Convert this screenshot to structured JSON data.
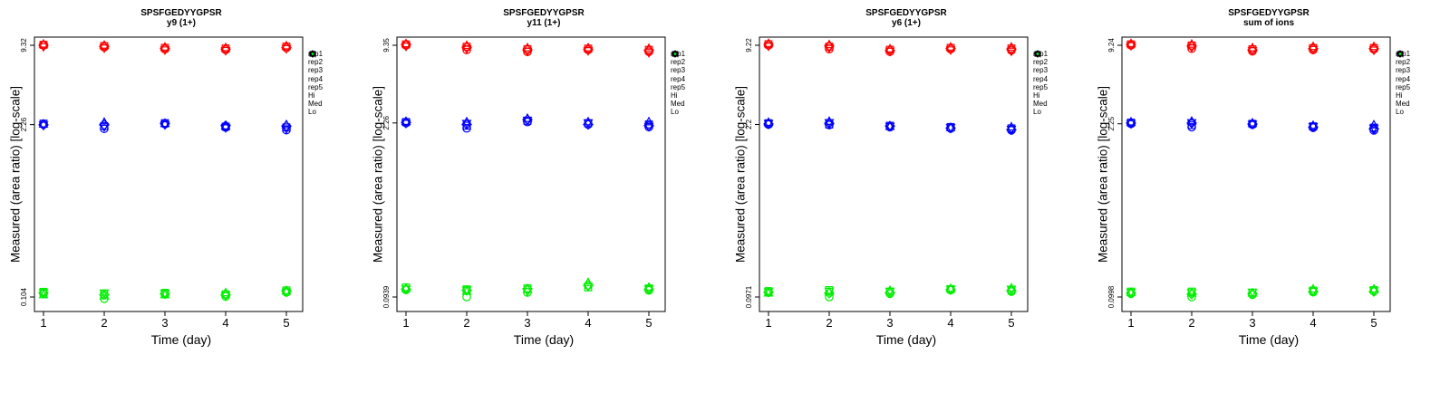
{
  "chart_data": [
    {
      "type": "scatter",
      "title": "SPSFGEDYYGPSR",
      "subtitle": "y9 (1+)",
      "xlabel": "Time (day)",
      "ylabel": "Measured (area ratio) [log-scale]",
      "log_y": true,
      "x_ticks": [
        1,
        2,
        3,
        4,
        5
      ],
      "y_ticks": [
        "0.104",
        "2.26",
        "9.32"
      ],
      "legend": [
        "rep1",
        "rep2",
        "rep3",
        "rep4",
        "rep5",
        "Hi",
        "Med",
        "Lo"
      ],
      "legend_position": "right",
      "series": [
        {
          "name": "Hi",
          "color": "#ff0000",
          "reps": [
            [
              9.32,
              9.0,
              8.7,
              8.6,
              8.9
            ],
            [
              9.4,
              9.2,
              8.9,
              8.8,
              9.1
            ],
            [
              9.5,
              9.3,
              9.0,
              8.9,
              9.2
            ],
            [
              9.3,
              9.1,
              8.8,
              8.7,
              8.95
            ],
            [
              9.1,
              8.9,
              8.6,
              8.5,
              8.8
            ]
          ]
        },
        {
          "name": "Med",
          "color": "#0000ff",
          "reps": [
            [
              2.26,
              2.1,
              2.28,
              2.15,
              2.05
            ],
            [
              2.3,
              2.2,
              2.32,
              2.18,
              2.15
            ],
            [
              2.28,
              2.35,
              2.3,
              2.2,
              2.25
            ],
            [
              2.25,
              2.25,
              2.3,
              2.22,
              2.2
            ],
            [
              2.24,
              2.18,
              2.26,
              2.14,
              2.1
            ]
          ]
        },
        {
          "name": "Lo",
          "color": "#00ee00",
          "reps": [
            [
              0.11,
              0.101,
              0.109,
              0.105,
              0.113
            ],
            [
              0.114,
              0.11,
              0.112,
              0.109,
              0.117
            ],
            [
              0.108,
              0.106,
              0.108,
              0.112,
              0.115
            ],
            [
              0.112,
              0.108,
              0.11,
              0.108,
              0.116
            ],
            [
              0.113,
              0.112,
              0.111,
              0.107,
              0.114
            ]
          ]
        }
      ]
    },
    {
      "type": "scatter",
      "title": "SPSFGEDYYGPSR",
      "subtitle": "y11 (1+)",
      "xlabel": "Time (day)",
      "ylabel": "Measured (area ratio) [log-scale]",
      "log_y": true,
      "x_ticks": [
        1,
        2,
        3,
        4,
        5
      ],
      "y_ticks": [
        "0.0939",
        "2.26",
        "9.35"
      ],
      "legend": [
        "rep1",
        "rep2",
        "rep3",
        "rep4",
        "rep5",
        "Hi",
        "Med",
        "Lo"
      ],
      "legend_position": "right",
      "series": [
        {
          "name": "Hi",
          "color": "#ff0000",
          "reps": [
            [
              9.35,
              8.6,
              8.3,
              8.6,
              8.3
            ],
            [
              9.5,
              9.1,
              8.7,
              8.8,
              8.6
            ],
            [
              9.6,
              9.3,
              8.9,
              8.9,
              8.8
            ],
            [
              9.45,
              9.0,
              8.6,
              8.7,
              8.5
            ],
            [
              9.2,
              8.8,
              8.4,
              8.5,
              8.2
            ]
          ]
        },
        {
          "name": "Med",
          "color": "#0000ff",
          "reps": [
            [
              2.26,
              2.05,
              2.3,
              2.2,
              2.1
            ],
            [
              2.3,
              2.15,
              2.35,
              2.25,
              2.2
            ],
            [
              2.32,
              2.3,
              2.45,
              2.3,
              2.3
            ],
            [
              2.28,
              2.2,
              2.4,
              2.2,
              2.15
            ],
            [
              2.25,
              2.25,
              2.38,
              2.27,
              2.12
            ]
          ]
        },
        {
          "name": "Lo",
          "color": "#00ee00",
          "reps": [
            [
              0.107,
              0.0939,
              0.102,
              0.116,
              0.106
            ],
            [
              0.112,
              0.108,
              0.11,
              0.112,
              0.11
            ],
            [
              0.11,
              0.104,
              0.108,
              0.122,
              0.112
            ],
            [
              0.108,
              0.106,
              0.109,
              0.116,
              0.108
            ],
            [
              0.109,
              0.107,
              0.104,
              0.114,
              0.109
            ]
          ]
        }
      ]
    },
    {
      "type": "scatter",
      "title": "SPSFGEDYYGPSR",
      "subtitle": "y6 (1+)",
      "xlabel": "Time (day)",
      "ylabel": "Measured (area ratio) [log-scale]",
      "log_y": true,
      "x_ticks": [
        1,
        2,
        3,
        4,
        5
      ],
      "y_ticks": [
        "0.0971",
        "2.2",
        "9.22"
      ],
      "legend": [
        "rep1",
        "rep2",
        "rep3",
        "rep4",
        "rep5",
        "Hi",
        "Med",
        "Lo"
      ],
      "legend_position": "right",
      "series": [
        {
          "name": "Hi",
          "color": "#ff0000",
          "reps": [
            [
              9.22,
              8.6,
              8.2,
              8.6,
              8.4
            ],
            [
              9.4,
              9.0,
              8.5,
              8.8,
              8.7
            ],
            [
              9.5,
              9.3,
              8.6,
              8.9,
              8.9
            ],
            [
              9.3,
              9.1,
              8.4,
              8.7,
              8.6
            ],
            [
              9.1,
              8.8,
              8.3,
              8.5,
              8.3
            ]
          ]
        },
        {
          "name": "Med",
          "color": "#0000ff",
          "reps": [
            [
              2.2,
              2.18,
              2.1,
              2.05,
              1.98
            ],
            [
              2.25,
              2.2,
              2.15,
              2.1,
              2.05
            ],
            [
              2.28,
              2.32,
              2.12,
              2.08,
              2.1
            ],
            [
              2.22,
              2.25,
              2.14,
              2.06,
              2.0
            ],
            [
              2.24,
              2.28,
              2.13,
              2.08,
              2.02
            ]
          ]
        },
        {
          "name": "Lo",
          "color": "#00ee00",
          "reps": [
            [
              0.105,
              0.0971,
              0.103,
              0.11,
              0.107
            ],
            [
              0.108,
              0.11,
              0.107,
              0.112,
              0.111
            ],
            [
              0.104,
              0.106,
              0.109,
              0.113,
              0.114
            ],
            [
              0.106,
              0.104,
              0.105,
              0.111,
              0.109
            ],
            [
              0.107,
              0.108,
              0.108,
              0.112,
              0.112
            ]
          ]
        }
      ]
    },
    {
      "type": "scatter",
      "title": "SPSFGEDYYGPSR",
      "subtitle": "sum of ions",
      "xlabel": "Time (day)",
      "ylabel": "Measured (area ratio) [log-scale]",
      "log_y": true,
      "x_ticks": [
        1,
        2,
        3,
        4,
        5
      ],
      "y_ticks": [
        "0.0998",
        "2.25",
        "9.24"
      ],
      "legend": [
        "rep1",
        "rep2",
        "rep3",
        "rep4",
        "rep5",
        "Hi",
        "Med",
        "Lo"
      ],
      "legend_position": "right",
      "series": [
        {
          "name": "Hi",
          "color": "#ff0000",
          "reps": [
            [
              9.24,
              8.7,
              8.3,
              8.5,
              8.6
            ],
            [
              9.4,
              9.2,
              8.6,
              8.8,
              8.8
            ],
            [
              9.5,
              9.4,
              8.8,
              9.0,
              9.0
            ],
            [
              9.35,
              9.1,
              8.5,
              8.7,
              8.7
            ],
            [
              9.2,
              8.9,
              8.4,
              8.6,
              8.5
            ]
          ]
        },
        {
          "name": "Med",
          "color": "#0000ff",
          "reps": [
            [
              2.25,
              2.12,
              2.22,
              2.1,
              2.0
            ],
            [
              2.3,
              2.2,
              2.25,
              2.15,
              2.1
            ],
            [
              2.32,
              2.35,
              2.28,
              2.18,
              2.2
            ],
            [
              2.28,
              2.28,
              2.24,
              2.12,
              2.05
            ],
            [
              2.26,
              2.3,
              2.23,
              2.14,
              2.08
            ]
          ]
        },
        {
          "name": "Lo",
          "color": "#00ee00",
          "reps": [
            [
              0.106,
              0.0998,
              0.104,
              0.109,
              0.111
            ],
            [
              0.11,
              0.11,
              0.108,
              0.112,
              0.113
            ],
            [
              0.108,
              0.107,
              0.107,
              0.115,
              0.115
            ],
            [
              0.107,
              0.105,
              0.106,
              0.11,
              0.11
            ],
            [
              0.109,
              0.108,
              0.109,
              0.111,
              0.112
            ]
          ]
        }
      ]
    }
  ]
}
